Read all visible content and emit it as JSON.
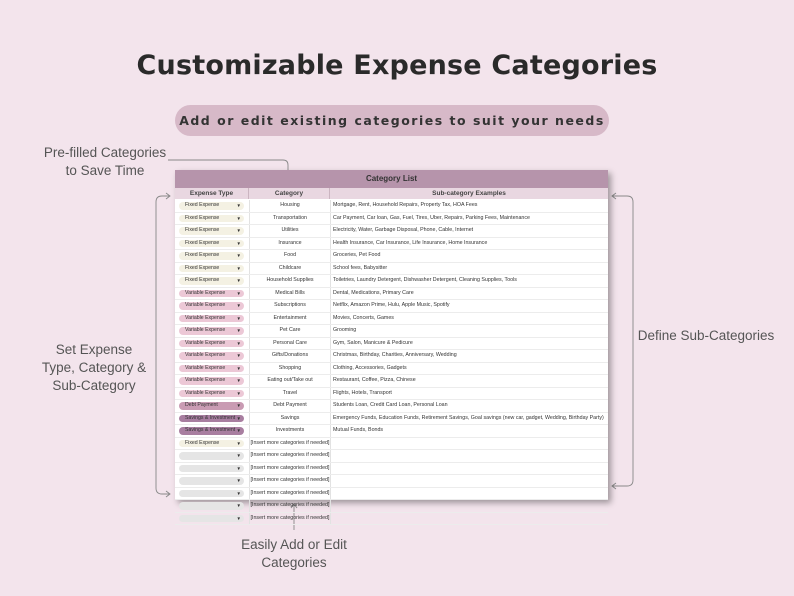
{
  "title": "Customizable Expense Categories",
  "subtitle": "Add or edit existing categories to suit your needs",
  "annotations": {
    "prefilled_line1": "Pre-filled Categories",
    "prefilled_line2": "to Save Time",
    "settype_line1": "Set Expense",
    "settype_line2": "Type, Category &",
    "settype_line3": "Sub-Category",
    "define": "Define Sub-Categories",
    "add_line1": "Easily Add or Edit",
    "add_line2": "Categories"
  },
  "sheet": {
    "title": "Category List",
    "headers": {
      "type": "Expense Type",
      "category": "Category",
      "sub": "Sub-category Examples"
    },
    "rows": [
      {
        "type": "Fixed Expense",
        "kind": "fixed",
        "category": "Housing",
        "sub": "Mortgage, Rent, Household Repairs, Property Tax, HOA Fees"
      },
      {
        "type": "Fixed Expense",
        "kind": "fixed",
        "category": "Transportation",
        "sub": "Car Payment, Car loan, Gas, Fuel, Tires, Uber, Repairs, Parking Fees, Maintenance"
      },
      {
        "type": "Fixed Expense",
        "kind": "fixed",
        "category": "Utilities",
        "sub": "Electricity, Water, Garbage Disposal, Phone, Cable, Internet"
      },
      {
        "type": "Fixed Expense",
        "kind": "fixed",
        "category": "Insurance",
        "sub": "Health Insurance, Car Insurance, Life Insurance, Home Insurance"
      },
      {
        "type": "Fixed Expense",
        "kind": "fixed",
        "category": "Food",
        "sub": "Groceries, Pet Food"
      },
      {
        "type": "Fixed Expense",
        "kind": "fixed",
        "category": "Childcare",
        "sub": "School fees, Babysitter"
      },
      {
        "type": "Fixed Expense",
        "kind": "fixed",
        "category": "Household Supplies",
        "sub": "Toiletries, Laundry Detergent, Dishwasher Detergent, Cleaning Supplies, Tools"
      },
      {
        "type": "Variable Expense",
        "kind": "variable",
        "category": "Medical Bills",
        "sub": "Dental, Medications, Primary Care"
      },
      {
        "type": "Variable Expense",
        "kind": "variable",
        "category": "Subscriptions",
        "sub": "Netflix, Amazon Prime, Hulu, Apple Music, Spotify"
      },
      {
        "type": "Variable Expense",
        "kind": "variable",
        "category": "Entertainment",
        "sub": "Movies, Concerts, Games"
      },
      {
        "type": "Variable Expense",
        "kind": "variable",
        "category": "Pet Care",
        "sub": "Grooming"
      },
      {
        "type": "Variable Expense",
        "kind": "variable",
        "category": "Personal Care",
        "sub": "Gym, Salon, Manicure & Pedicure"
      },
      {
        "type": "Variable Expense",
        "kind": "variable",
        "category": "Gifts/Donations",
        "sub": "Christmas, Birthday, Charities, Anniversary, Wedding"
      },
      {
        "type": "Variable Expense",
        "kind": "variable",
        "category": "Shopping",
        "sub": "Clothing, Accessories, Gadgets"
      },
      {
        "type": "Variable Expense",
        "kind": "variable",
        "category": "Eating out/Take out",
        "sub": "Restaurant, Coffee, Pizza, Chinese"
      },
      {
        "type": "Variable Expense",
        "kind": "variable",
        "category": "Travel",
        "sub": "Flights, Hotels, Transport"
      },
      {
        "type": "Debt Payment",
        "kind": "debt",
        "category": "Debt Payment",
        "sub": "Students Loan, Credit Card Loan, Personal Loan"
      },
      {
        "type": "Savings & Investment",
        "kind": "savings",
        "category": "Savings",
        "sub": "Emergency Funds, Education Funds, Retirement Savings, Goal savings (new car, gadget, Wedding, Birthday Party)"
      },
      {
        "type": "Savings & Investment",
        "kind": "savings",
        "category": "Investments",
        "sub": "Mutual Funds, Bonds"
      },
      {
        "type": "Fixed Expense",
        "kind": "fixed",
        "category": "[Insert more categories if needed]",
        "sub": ""
      },
      {
        "type": "",
        "kind": "empty",
        "category": "[Insert more categories if needed]",
        "sub": ""
      },
      {
        "type": "",
        "kind": "empty",
        "category": "[Insert more categories if needed]",
        "sub": ""
      },
      {
        "type": "",
        "kind": "empty",
        "category": "[Insert more categories if needed]",
        "sub": ""
      },
      {
        "type": "",
        "kind": "empty",
        "category": "[Insert more categories if needed]",
        "sub": ""
      },
      {
        "type": "",
        "kind": "empty",
        "category": "[Insert more categories if needed]",
        "sub": ""
      },
      {
        "type": "",
        "kind": "empty",
        "category": "[Insert more categories if needed]",
        "sub": ""
      }
    ]
  },
  "colors": {
    "background": "#f3e4ec",
    "pill": "#d7b9c8",
    "sheet_title": "#b694ab",
    "fixed": "#f4f1e3",
    "variable": "#ecc8d6",
    "debt": "#c99bb3",
    "savings": "#a87ea0"
  }
}
